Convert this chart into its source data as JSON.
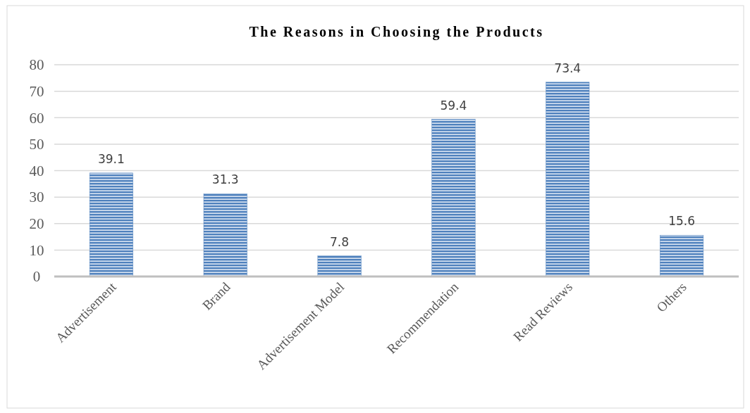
{
  "chart_data": {
    "type": "bar",
    "title": "The Reasons in Choosing the Products",
    "categories": [
      "Advertisement",
      "Brand",
      "Advertisement Model",
      "Recommendation",
      "Read Reviews",
      "Others"
    ],
    "values": [
      39.1,
      31.3,
      7.8,
      59.4,
      73.4,
      15.6
    ],
    "color": "#4f81bd",
    "ylim": [
      0,
      80
    ],
    "yticks": [
      0,
      10,
      20,
      30,
      40,
      50,
      60,
      70,
      80
    ],
    "grid": "y",
    "data_labels": true
  }
}
